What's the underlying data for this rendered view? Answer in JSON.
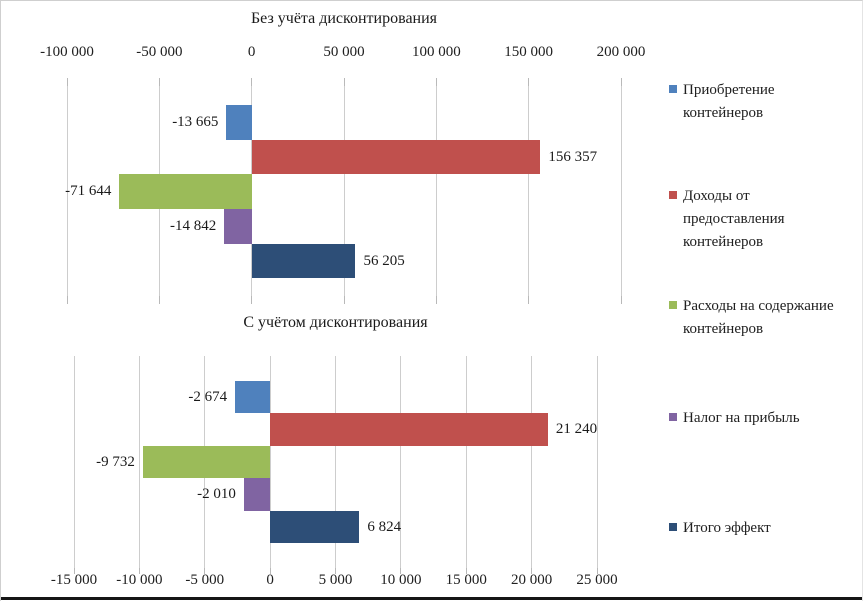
{
  "figure": {
    "background": "#ffffff",
    "frame_color": "#cfcfcf",
    "bottom_rule_color": "#161616",
    "gridline_color": "#cdcdcd",
    "text_color": "#202020"
  },
  "palette": {
    "acquisition_blue": "#4F81BD",
    "income_red": "#C0504D",
    "maintenance_green": "#9BBB59",
    "tax_purple": "#8064A2",
    "total_navy": "#2D4E77"
  },
  "legend": {
    "position": "right",
    "items": [
      {
        "key": "acquisition",
        "color": "#4F81BD",
        "lines": [
          "Приобретение",
          "контейнеров"
        ]
      },
      {
        "key": "income",
        "color": "#C0504D",
        "lines": [
          "Доходы от",
          "предоставления",
          "контейнеров"
        ]
      },
      {
        "key": "maintenance",
        "color": "#9BBB59",
        "lines": [
          "Расходы на содержание",
          "контейнеров"
        ]
      },
      {
        "key": "tax",
        "color": "#8064A2",
        "lines": [
          "Налог на прибыль"
        ]
      },
      {
        "key": "total",
        "color": "#2D4E77",
        "lines": [
          "Итого эффект"
        ]
      }
    ]
  },
  "chart_data": [
    {
      "type": "bar",
      "orientation": "horizontal",
      "title": "Без учёта дисконтирования",
      "axis_position": "top",
      "grid": true,
      "legend_position": "right",
      "xlim": [
        -100000,
        200000
      ],
      "ticks": [
        {
          "value": -100000,
          "label": "-100 000"
        },
        {
          "value": -50000,
          "label": "-50 000"
        },
        {
          "value": 0,
          "label": "0"
        },
        {
          "value": 50000,
          "label": "50 000"
        },
        {
          "value": 100000,
          "label": "100 000"
        },
        {
          "value": 150000,
          "label": "150 000"
        },
        {
          "value": 200000,
          "label": "200 000"
        }
      ],
      "series": [
        {
          "key": "acquisition",
          "name": "Приобретение контейнеров",
          "value": -13665,
          "label": "-13 665",
          "color": "#4F81BD"
        },
        {
          "key": "income",
          "name": "Доходы от предоставления контейнеров",
          "value": 156357,
          "label": "156 357",
          "color": "#C0504D"
        },
        {
          "key": "maintenance",
          "name": "Расходы на содержание контейнеров",
          "value": -71644,
          "label": "-71 644",
          "color": "#9BBB59"
        },
        {
          "key": "tax",
          "name": "Налог на прибыль",
          "value": -14842,
          "label": "-14 842",
          "color": "#8064A2"
        },
        {
          "key": "total",
          "name": "Итого эффект",
          "value": 56205,
          "label": "56 205",
          "color": "#2D4E77"
        }
      ]
    },
    {
      "type": "bar",
      "orientation": "horizontal",
      "title": "С учётом дисконтирования",
      "axis_position": "bottom",
      "grid": true,
      "legend_position": "right",
      "xlim": [
        -15000,
        25000
      ],
      "ticks": [
        {
          "value": -15000,
          "label": "-15 000"
        },
        {
          "value": -10000,
          "label": "-10 000"
        },
        {
          "value": -5000,
          "label": "-5 000"
        },
        {
          "value": 0,
          "label": "0"
        },
        {
          "value": 5000,
          "label": "5 000"
        },
        {
          "value": 10000,
          "label": "10 000"
        },
        {
          "value": 15000,
          "label": "15 000"
        },
        {
          "value": 20000,
          "label": "20 000"
        },
        {
          "value": 25000,
          "label": "25 000"
        }
      ],
      "series": [
        {
          "key": "acquisition",
          "name": "Приобретение контейнеров",
          "value": -2674,
          "label": "-2 674",
          "color": "#4F81BD"
        },
        {
          "key": "income",
          "name": "Доходы от предоставления контейнеров",
          "value": 21240,
          "label": "21 240",
          "color": "#C0504D"
        },
        {
          "key": "maintenance",
          "name": "Расходы на содержание контейнеров",
          "value": -9732,
          "label": "-9 732",
          "color": "#9BBB59"
        },
        {
          "key": "tax",
          "name": "Налог на прибыль",
          "value": -2010,
          "label": "-2 010",
          "color": "#8064A2"
        },
        {
          "key": "total",
          "name": "Итого эффект",
          "value": 6824,
          "label": "6 824",
          "color": "#2D4E77"
        }
      ]
    }
  ]
}
